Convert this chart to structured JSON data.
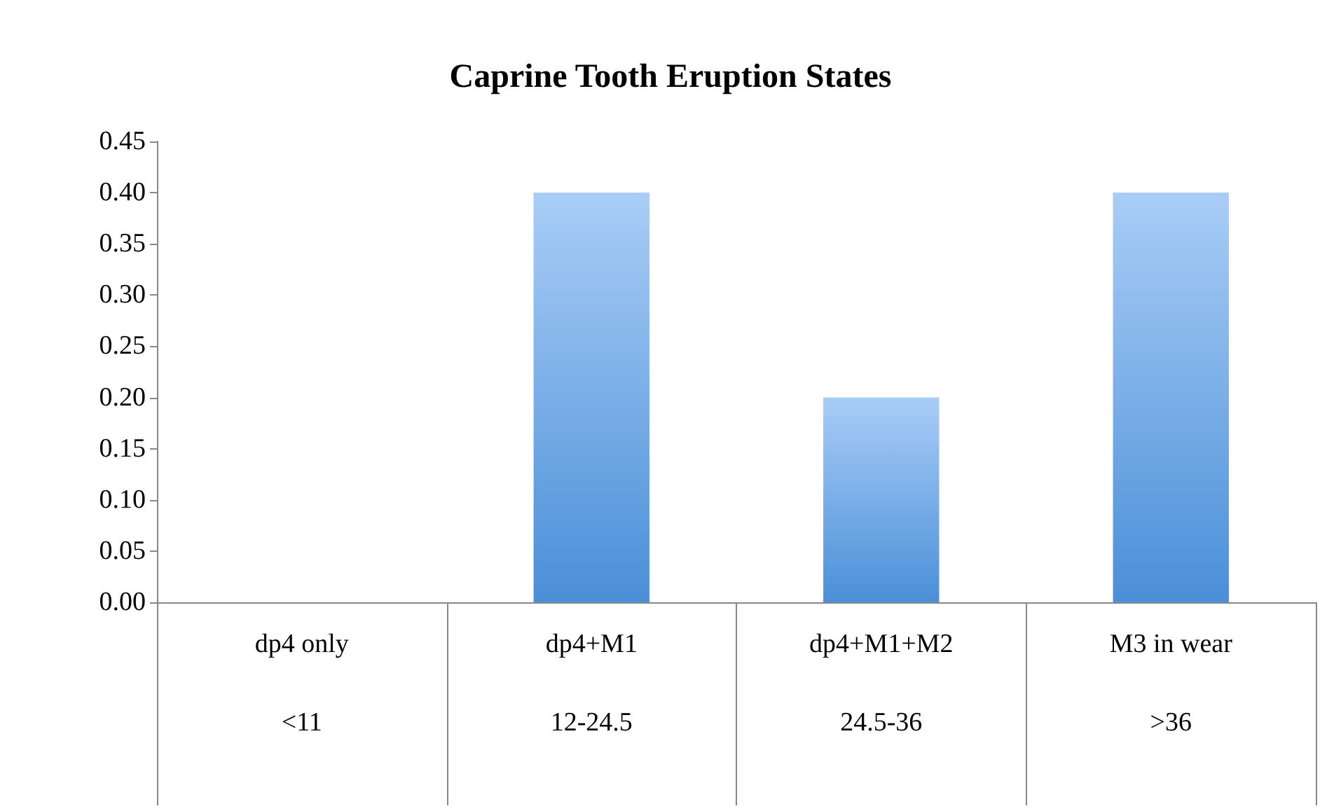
{
  "chart_data": {
    "type": "bar",
    "title": "Caprine Tooth Eruption States",
    "categories": [
      "dp4 only\n\n<11",
      "dp4+M1\n\n12-24.5",
      "dp4+M1+M2\n\n24.5-36",
      "M3 in wear\n\n>36"
    ],
    "values": [
      0,
      0.4,
      0.2,
      0.4
    ],
    "color": "#4a8fd8",
    "ylim": [
      0,
      0.45
    ],
    "yticks": [
      {
        "value": 0,
        "label": "0.00"
      },
      {
        "value": 0.05,
        "label": "0.05"
      },
      {
        "value": 0.1,
        "label": "0.10"
      },
      {
        "value": 0.15,
        "label": "0.15"
      },
      {
        "value": 0.2,
        "label": "0.20"
      },
      {
        "value": 0.25,
        "label": "0.25"
      },
      {
        "value": 0.3,
        "label": "0.30"
      },
      {
        "value": 0.35,
        "label": "0.35"
      },
      {
        "value": 0.4,
        "label": "0.40"
      },
      {
        "value": 0.45,
        "label": "0.45"
      }
    ],
    "grid": false
  }
}
